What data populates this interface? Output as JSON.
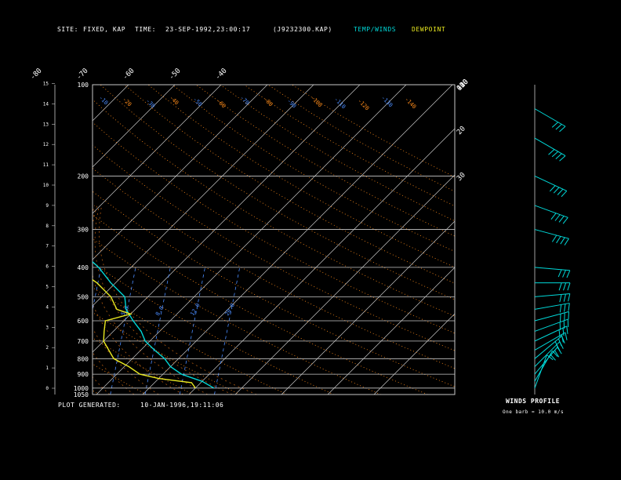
{
  "header": {
    "site_label": "SITE:",
    "site_value": "FIXED, KAP",
    "time_label": "TIME:",
    "time_value": "23-SEP-1992,23:00:17",
    "file_value": "(J9232300.KAP)",
    "temp_legend": "TEMP/WINDS",
    "dew_legend": "DEWPOINT"
  },
  "footer": {
    "generated_label": "PLOT GENERATED:",
    "generated_value": "10-JAN-1996,19:11:06"
  },
  "winds": {
    "title": "WINDS PROFILE",
    "note": "One barb = 10.0 m/s"
  },
  "colors": {
    "temperature": "#00d8d8",
    "dewpoint": "#e8e820",
    "isobar": "#c8c8c8",
    "isotherm": "#c8c8c8",
    "dry_adiabat": "#ff8c1a",
    "mixing_ratio": "#4a8cff",
    "wind": "#00d8d8"
  },
  "chart_data": {
    "type": "skew-t",
    "pressure_levels": [
      "100",
      "200",
      "300",
      "400",
      "500",
      "600",
      "700",
      "800",
      "900",
      "1000",
      "1050"
    ],
    "height_km_labels": [
      "0",
      "1",
      "2",
      "3",
      "4",
      "5",
      "6",
      "7",
      "8",
      "9",
      "10",
      "11",
      "12",
      "13",
      "14",
      "15"
    ],
    "isotherm_top_labels": [
      "-110",
      "-100",
      "-90",
      "-80",
      "-70",
      "-60",
      "-50",
      "-40"
    ],
    "isotherm_right_labels": [
      "-30",
      "-20",
      "-10",
      "0",
      "10",
      "20",
      "30"
    ],
    "mixing_ratio_labels": [
      ".1",
      ".2",
      ".4",
      "1.0",
      "2.0",
      "3.5",
      "5.0",
      "8.0",
      "12.0",
      "20.0"
    ],
    "dry_adiabat_labels": [
      "-10",
      "-20",
      "-30",
      "-40",
      "-50",
      "-60",
      "-70",
      "-80",
      "-90",
      "-100",
      "-110",
      "-120",
      "-130",
      "-140"
    ],
    "temperature": [
      {
        "p": 1000,
        "t": 24
      },
      {
        "p": 950,
        "t": 20
      },
      {
        "p": 925,
        "t": 17
      },
      {
        "p": 900,
        "t": 14
      },
      {
        "p": 850,
        "t": 10
      },
      {
        "p": 800,
        "t": 7
      },
      {
        "p": 750,
        "t": 3
      },
      {
        "p": 700,
        "t": -1
      },
      {
        "p": 650,
        "t": -4
      },
      {
        "p": 600,
        "t": -8
      },
      {
        "p": 550,
        "t": -12
      },
      {
        "p": 500,
        "t": -15
      },
      {
        "p": 450,
        "t": -21
      },
      {
        "p": 400,
        "t": -27
      },
      {
        "p": 350,
        "t": -35
      },
      {
        "p": 300,
        "t": -43
      },
      {
        "p": 250,
        "t": -53
      },
      {
        "p": 200,
        "t": -62
      },
      {
        "p": 180,
        "t": -66
      },
      {
        "p": 150,
        "t": -70
      },
      {
        "p": 125,
        "t": -74
      },
      {
        "p": 110,
        "t": -72
      },
      {
        "p": 100,
        "t": -70
      }
    ],
    "dewpoint": [
      {
        "p": 1000,
        "t": 20
      },
      {
        "p": 960,
        "t": 18
      },
      {
        "p": 930,
        "t": 10
      },
      {
        "p": 900,
        "t": 5
      },
      {
        "p": 850,
        "t": 1
      },
      {
        "p": 800,
        "t": -4
      },
      {
        "p": 700,
        "t": -10
      },
      {
        "p": 650,
        "t": -12
      },
      {
        "p": 600,
        "t": -14
      },
      {
        "p": 570,
        "t": -10
      },
      {
        "p": 550,
        "t": -14
      },
      {
        "p": 500,
        "t": -18
      },
      {
        "p": 450,
        "t": -24
      },
      {
        "p": 400,
        "t": -32
      },
      {
        "p": 350,
        "t": -42
      },
      {
        "p": 310,
        "t": -52
      },
      {
        "p": 290,
        "t": -52
      },
      {
        "p": 260,
        "t": -54
      },
      {
        "p": 240,
        "t": -62
      },
      {
        "p": 210,
        "t": -70
      },
      {
        "p": 180,
        "t": -80
      },
      {
        "p": 150,
        "t": -88
      },
      {
        "p": 130,
        "t": -86
      },
      {
        "p": 110,
        "t": -82
      },
      {
        "p": 100,
        "t": -80
      }
    ],
    "winds": [
      {
        "p": 1000,
        "dir": 200,
        "spd": 10
      },
      {
        "p": 950,
        "dir": 210,
        "spd": 15
      },
      {
        "p": 900,
        "dir": 220,
        "spd": 20
      },
      {
        "p": 850,
        "dir": 225,
        "spd": 20
      },
      {
        "p": 800,
        "dir": 230,
        "spd": 25
      },
      {
        "p": 750,
        "dir": 240,
        "spd": 20
      },
      {
        "p": 700,
        "dir": 245,
        "spd": 25
      },
      {
        "p": 650,
        "dir": 250,
        "spd": 30
      },
      {
        "p": 600,
        "dir": 255,
        "spd": 30
      },
      {
        "p": 550,
        "dir": 260,
        "spd": 25
      },
      {
        "p": 500,
        "dir": 265,
        "spd": 30
      },
      {
        "p": 450,
        "dir": 270,
        "spd": 30
      },
      {
        "p": 400,
        "dir": 275,
        "spd": 25
      },
      {
        "p": 300,
        "dir": 285,
        "spd": 35
      },
      {
        "p": 250,
        "dir": 290,
        "spd": 40
      },
      {
        "p": 200,
        "dir": 295,
        "spd": 40
      },
      {
        "p": 150,
        "dir": 300,
        "spd": 40
      },
      {
        "p": 120,
        "dir": 300,
        "spd": 30
      }
    ]
  }
}
